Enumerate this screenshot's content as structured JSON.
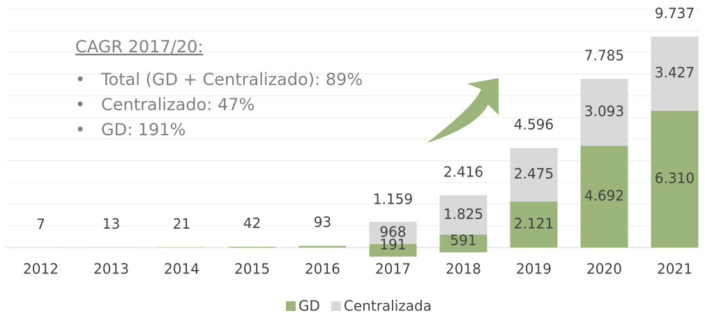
{
  "chart_data": {
    "type": "stacked_bar",
    "categories": [
      "2012",
      "2013",
      "2014",
      "2015",
      "2016",
      "2017",
      "2018",
      "2019",
      "2020",
      "2021"
    ],
    "series": [
      {
        "name": "GD",
        "color": "#9bb57a",
        "values": [
          2,
          7,
          14,
          31,
          75,
          191,
          591,
          2121,
          4692,
          6310
        ],
        "value_labels": [
          null,
          null,
          null,
          null,
          null,
          "191",
          "591",
          "2.121",
          "4.692",
          "6.310"
        ]
      },
      {
        "name": "Centralizada",
        "color": "#d9d9d9",
        "values": [
          5,
          6,
          7,
          11,
          18,
          968,
          1825,
          2475,
          3093,
          3427
        ],
        "value_labels": [
          null,
          null,
          null,
          null,
          null,
          "968",
          "1.825",
          "2.475",
          "3.093",
          "3.427"
        ]
      }
    ],
    "totals": {
      "values": [
        7,
        13,
        21,
        42,
        93,
        1159,
        2416,
        4596,
        7785,
        9737
      ],
      "value_labels": [
        "7",
        "13",
        "21",
        "42",
        "93",
        "1.159",
        "2.416",
        "4.596",
        "7.785",
        "9.737"
      ]
    },
    "ylim": [
      0,
      11000
    ],
    "ygrid": [
      1000,
      2000,
      3000,
      4000,
      5000,
      6000,
      7000,
      8000,
      9000,
      10000,
      11000
    ],
    "grid": true,
    "legend": "bottom",
    "annotation": {
      "title": "CAGR 2017/20:",
      "items": [
        "Total (GD + Centralizado): 89%",
        "Centralizado: 47%",
        "GD: 191%"
      ]
    }
  }
}
